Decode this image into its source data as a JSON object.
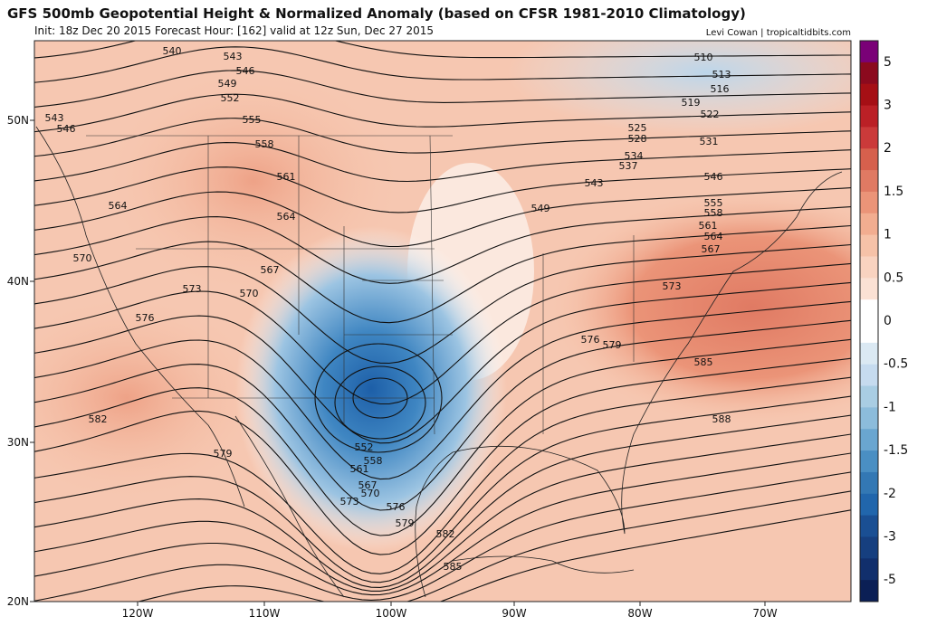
{
  "header": {
    "title": "GFS 500mb Geopotential Height & Normalized Anomaly (based on CFSR 1981-2010 Climatology)",
    "subtitle": "Init: 18z Dec 20 2015   Forecast Hour: [162]   valid at 12z Sun, Dec 27 2015",
    "credit": "Levi Cowan | tropicaltidbits.com"
  },
  "axes": {
    "lon_labels": [
      "120W",
      "110W",
      "100W",
      "90W",
      "80W",
      "70W"
    ],
    "lat_labels": [
      "50N",
      "40N",
      "30N",
      "20N"
    ]
  },
  "colorbar": {
    "ticks": [
      5,
      3,
      2,
      1.5,
      1,
      0.5,
      0,
      -0.5,
      -1,
      -1.5,
      -2,
      -3,
      -5
    ],
    "colors": [
      "#7a0177",
      "#8b0a1e",
      "#a50f15",
      "#bb2026",
      "#cb3a3a",
      "#d6604d",
      "#e07a63",
      "#eb9478",
      "#f2ad90",
      "#f6c2a8",
      "#f9d3c0",
      "#fbe1d4",
      "#ffffff",
      "#ffffff",
      "#dbe9f3",
      "#c6dbef",
      "#a9cde3",
      "#8cbcdb",
      "#6aa6d0",
      "#4a8fc3",
      "#3378b4",
      "#2166ac",
      "#1a4f93",
      "#163f7f",
      "#112f6c",
      "#0b1f55"
    ]
  },
  "contour_labels": [
    540,
    543,
    546,
    549,
    552,
    555,
    558,
    561,
    564,
    564,
    567,
    570,
    570,
    573,
    576,
    582,
    579,
    543,
    546,
    510,
    513,
    516,
    519,
    522,
    525,
    528,
    531,
    534,
    537,
    543,
    546,
    549,
    555,
    558,
    561,
    564,
    567,
    573,
    576,
    579,
    585,
    588,
    552,
    558,
    561,
    567,
    570,
    573,
    576,
    579,
    582,
    585
  ]
}
